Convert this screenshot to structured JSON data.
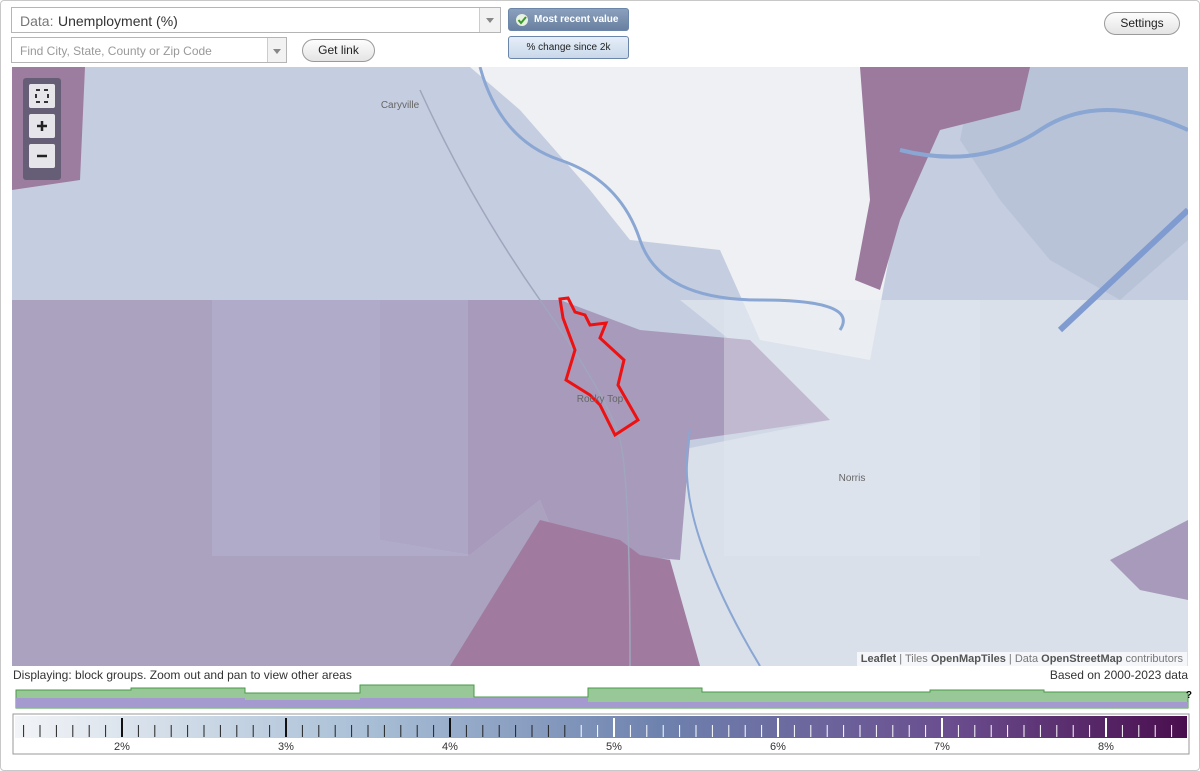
{
  "controls": {
    "data_label": "Data:",
    "data_value": "Unemployment (%)",
    "search_placeholder": "Find City, State, County or Zip Code",
    "get_link": "Get link",
    "most_recent": "Most recent value",
    "percent_change": "% change since 2k",
    "settings": "Settings"
  },
  "map": {
    "places": [
      "Caryville",
      "Rocky Top",
      "Norris"
    ],
    "attribution": {
      "leaflet": "Leaflet",
      "separator": "|",
      "tiles_label": "Tiles",
      "tiles": "OpenMapTiles",
      "data_label": "Data",
      "data": "OpenStreetMap",
      "contributors": "contributors"
    }
  },
  "footer": {
    "displaying": "Displaying: block groups. Zoom out and pan to view other areas",
    "based_on": "Based on 2000-2023 data"
  },
  "legend": {
    "labels": [
      "2%",
      "3%",
      "4%",
      "5%",
      "6%",
      "7%",
      "8%"
    ],
    "help": "?"
  }
}
